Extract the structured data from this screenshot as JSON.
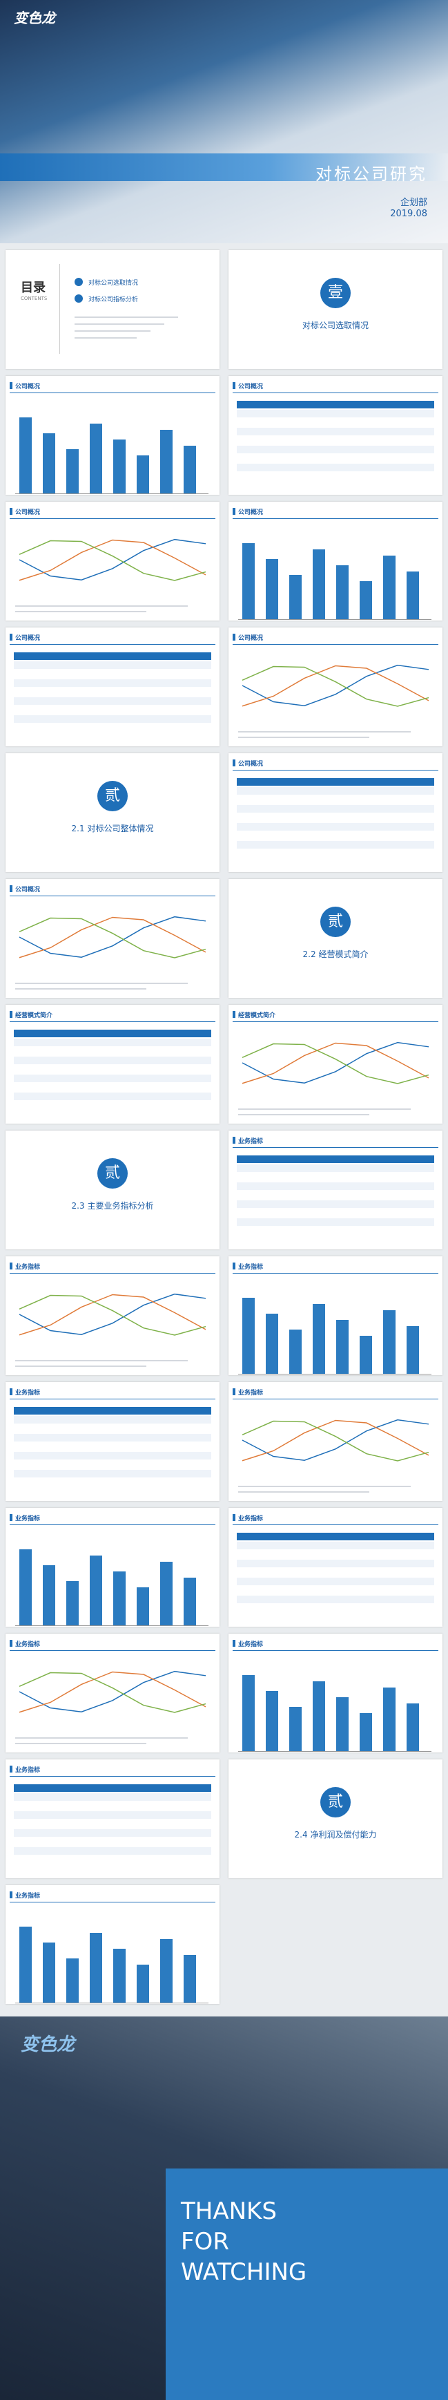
{
  "logo": "变色龙",
  "cover": {
    "title": "对标公司研究",
    "dept": "企划部",
    "date": "2019.08"
  },
  "contents": {
    "title": "目录",
    "subtitle": "CONTENTS",
    "items": [
      "对标公司选取情况",
      "对标公司指标分析"
    ]
  },
  "sections": [
    {
      "num": "壹",
      "title": "对标公司选取情况"
    },
    {
      "num": "贰",
      "title": "2.1 对标公司整体情况"
    },
    {
      "num": "贰",
      "title": "2.2 经营模式简介"
    },
    {
      "num": "贰",
      "title": "2.3 主要业务指标分析"
    },
    {
      "num": "贰",
      "title": "2.4 净利润及偿付能力"
    }
  ],
  "slide_titles": [
    "公司概况",
    "经营模式简介",
    "业务指标"
  ],
  "ending": {
    "lines": [
      "THANKS",
      "FOR",
      "WATCHING"
    ]
  }
}
